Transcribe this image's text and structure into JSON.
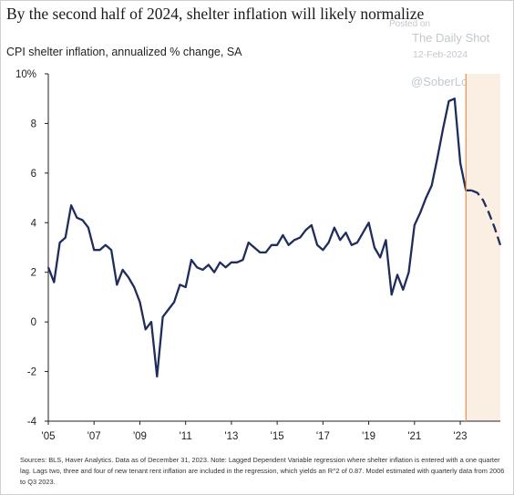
{
  "header": {
    "title": "By the second half of 2024, shelter inflation will likely normalize",
    "subtitle": "CPI shelter inflation, annualized % change, SA"
  },
  "watermark": {
    "posted_on": "Posted on",
    "site": "The Daily Shot",
    "date": "12-Feb-2024",
    "handle": "@SoberLook"
  },
  "footer": {
    "source": "Sources: BLS, Haver Analytics. Data as of December 31, 2023. Note: Lagged Dependent Variable regression where shelter inflation is entered with a one quarter lag. Lags two, three and four of new tenant rent inflation are included in the regression, which yields an R^2 of 0.87. Model estimated with quarterly data from 2006 to Q3 2023."
  },
  "colors": {
    "line": "#1f2d5c",
    "forecast_shade": "#fbeee3",
    "marker": "#e8955a",
    "axis": "#222222"
  },
  "chart_data": {
    "type": "line",
    "title": "By the second half of 2024, shelter inflation will likely normalize",
    "ylabel": "CPI shelter inflation, annualized % change, SA",
    "ylim": [
      -4,
      10
    ],
    "xlim": [
      2005.0,
      2024.75
    ],
    "y_ticks": [
      -4,
      -2,
      0,
      2,
      4,
      6,
      8,
      10
    ],
    "y_tick_labels": [
      "-4",
      "-2",
      "0",
      "2",
      "4",
      "6",
      "8",
      "10%"
    ],
    "x_ticks": [
      2005,
      2007,
      2009,
      2011,
      2013,
      2015,
      2017,
      2019,
      2021,
      2023
    ],
    "x_tick_labels": [
      "'05",
      "'07",
      "'09",
      "'11",
      "'13",
      "'15",
      "'17",
      "'19",
      "'21",
      "'23"
    ],
    "grid": false,
    "forecast_start": 2023.25,
    "series": [
      {
        "style": "solid",
        "x": [
          2005.0,
          2005.25,
          2005.5,
          2005.75,
          2006.0,
          2006.25,
          2006.5,
          2006.75,
          2007.0,
          2007.25,
          2007.5,
          2007.75,
          2008.0,
          2008.25,
          2008.5,
          2008.75,
          2009.0,
          2009.25,
          2009.5,
          2009.75,
          2010.0,
          2010.25,
          2010.5,
          2010.75,
          2011.0,
          2011.25,
          2011.5,
          2011.75,
          2012.0,
          2012.25,
          2012.5,
          2012.75,
          2013.0,
          2013.25,
          2013.5,
          2013.75,
          2014.0,
          2014.25,
          2014.5,
          2014.75,
          2015.0,
          2015.25,
          2015.5,
          2015.75,
          2016.0,
          2016.25,
          2016.5,
          2016.75,
          2017.0,
          2017.25,
          2017.5,
          2017.75,
          2018.0,
          2018.25,
          2018.5,
          2018.75,
          2019.0,
          2019.25,
          2019.5,
          2019.75,
          2020.0,
          2020.25,
          2020.5,
          2020.75,
          2021.0,
          2021.25,
          2021.5,
          2021.75,
          2022.0,
          2022.25,
          2022.5,
          2022.75,
          2023.0,
          2023.25,
          2023.5
        ],
        "y": [
          2.2,
          1.6,
          3.2,
          3.4,
          4.7,
          4.2,
          4.1,
          3.8,
          2.9,
          2.9,
          3.1,
          2.9,
          1.5,
          2.1,
          1.8,
          1.4,
          0.8,
          -0.3,
          0.0,
          -2.2,
          0.2,
          0.5,
          0.8,
          1.5,
          1.4,
          2.5,
          2.2,
          2.1,
          2.3,
          2.0,
          2.4,
          2.2,
          2.4,
          2.4,
          2.5,
          3.2,
          3.0,
          2.8,
          2.8,
          3.1,
          3.1,
          3.5,
          3.1,
          3.3,
          3.4,
          3.7,
          3.9,
          3.1,
          2.9,
          3.2,
          3.8,
          3.3,
          3.6,
          3.1,
          3.2,
          3.6,
          4.0,
          3.0,
          2.6,
          3.3,
          1.1,
          1.9,
          1.3,
          2.0,
          3.9,
          4.4,
          5.0,
          5.5,
          6.6,
          7.8,
          8.9,
          9.0,
          6.4,
          5.3,
          5.3
        ]
      },
      {
        "style": "dashed",
        "x": [
          2023.5,
          2023.75,
          2024.0,
          2024.25,
          2024.5,
          2024.75
        ],
        "y": [
          5.3,
          5.2,
          4.9,
          4.4,
          3.8,
          3.1
        ]
      }
    ]
  }
}
